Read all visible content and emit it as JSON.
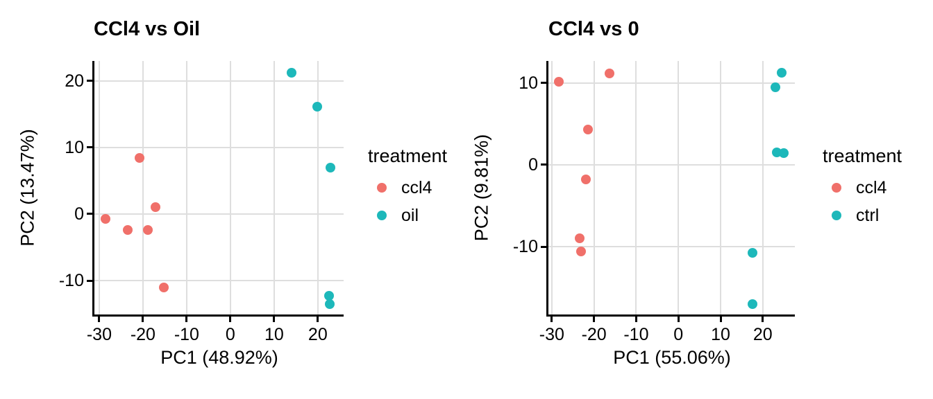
{
  "figure": {
    "background": "#ffffff",
    "text_color": "#000000",
    "grid_color": "#dedede",
    "axis_color": "#000000"
  },
  "chart_data": [
    {
      "type": "scatter",
      "title": "CCl4 vs Oil",
      "xlabel": "PC1 (48.92%)",
      "ylabel": "PC2 (13.47%)",
      "legend_title": "treatment",
      "legend_position": "right",
      "grid": true,
      "xlim": [
        -31.1,
        25.9
      ],
      "ylim": [
        -15.1,
        23.0
      ],
      "xticks": [
        -30,
        -20,
        -10,
        0,
        10,
        20
      ],
      "yticks": [
        20,
        10,
        0,
        -10
      ],
      "series": [
        {
          "name": "ccl4",
          "color": "#f0706a",
          "points": [
            [
              -28.6,
              -0.7
            ],
            [
              -23.5,
              -2.4
            ],
            [
              -20.8,
              8.4
            ],
            [
              -18.9,
              -2.4
            ],
            [
              -17.1,
              1.0
            ],
            [
              -15.3,
              -11.0
            ]
          ]
        },
        {
          "name": "oil",
          "color": "#1db8ba",
          "points": [
            [
              14.0,
              21.2
            ],
            [
              19.8,
              16.1
            ],
            [
              22.9,
              7.0
            ],
            [
              22.5,
              -12.3
            ],
            [
              22.8,
              -13.5
            ]
          ]
        }
      ]
    },
    {
      "type": "scatter",
      "title": "CCl4 vs 0",
      "xlabel": "PC1 (55.06%)",
      "ylabel": "PC2 (9.81%)",
      "legend_title": "treatment",
      "legend_position": "right",
      "grid": true,
      "xlim": [
        -30.8,
        27.6
      ],
      "ylim": [
        -18.3,
        12.7
      ],
      "xticks": [
        -30,
        -20,
        -10,
        0,
        10,
        20
      ],
      "yticks": [
        10,
        0,
        -10
      ],
      "series": [
        {
          "name": "ccl4",
          "color": "#f0706a",
          "points": [
            [
              -28.3,
              10.2
            ],
            [
              -16.3,
              11.2
            ],
            [
              -21.4,
              4.3
            ],
            [
              -21.9,
              -1.8
            ],
            [
              -23.4,
              -9.0
            ],
            [
              -23.0,
              -10.6
            ]
          ]
        },
        {
          "name": "ctrl",
          "color": "#1db8ba",
          "points": [
            [
              24.4,
              11.3
            ],
            [
              23.0,
              9.5
            ],
            [
              23.4,
              1.5
            ],
            [
              24.9,
              1.4
            ],
            [
              17.6,
              -10.8
            ],
            [
              17.6,
              -17.0
            ]
          ]
        }
      ]
    }
  ]
}
